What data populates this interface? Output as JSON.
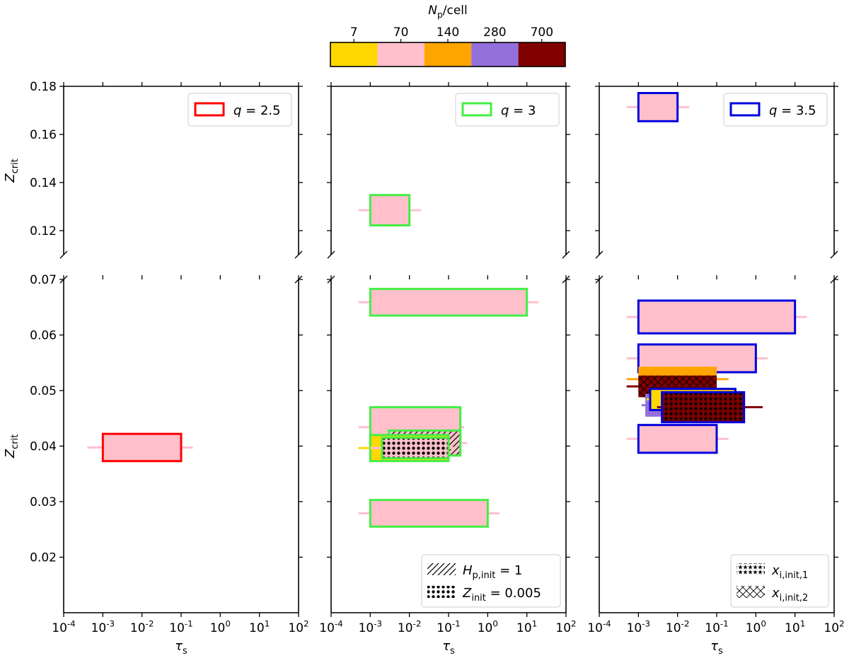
{
  "colorbar": {
    "label": "N_p/cell",
    "ticks": [
      "7",
      "70",
      "140",
      "280",
      "700"
    ],
    "colors": [
      "#FFD700",
      "#FFC0CB",
      "#FFA500",
      "#9370DB",
      "#800000"
    ]
  },
  "x_axis": {
    "label": "τ_s",
    "scale": "log",
    "ticks": [
      "10^-4",
      "10^-3",
      "10^-2",
      "10^-1",
      "10^0",
      "10^1",
      "10^2"
    ],
    "xlim": [
      0.0001,
      100
    ]
  },
  "y_axis": {
    "label": "Z_crit",
    "broken": true,
    "upper": {
      "ylim": [
        0.11,
        0.18
      ],
      "ticks": [
        "0.12",
        "0.14",
        "0.16",
        "0.18"
      ]
    },
    "lower": {
      "ylim": [
        0.01,
        0.07
      ],
      "ticks": [
        "0.02",
        "0.03",
        "0.04",
        "0.05",
        "0.06",
        "0.07"
      ]
    }
  },
  "chart_data": {
    "type": "bar",
    "panels": [
      {
        "legend": "q = 2.5",
        "edge_color": "#ff0000",
        "upper": [],
        "lower": [
          {
            "tau": [
              0.001,
              0.1
            ],
            "z": [
              0.0373,
              0.0422
            ],
            "np": "70",
            "err": [
              0.0004,
              0.2
            ]
          }
        ],
        "hatch_legend": []
      },
      {
        "legend": "q = 3",
        "edge_color": "#44ee44",
        "upper": [
          {
            "tau": [
              0.001,
              0.01
            ],
            "z": [
              0.1222,
              0.1348
            ],
            "np": "70",
            "err": [
              0.0005,
              0.02
            ]
          }
        ],
        "lower": [
          {
            "tau": [
              0.001,
              10
            ],
            "z": [
              0.0635,
              0.0683
            ],
            "np": "70",
            "err": [
              0.0005,
              20
            ]
          },
          {
            "tau": [
              0.001,
              0.2
            ],
            "z": [
              0.0398,
              0.047
            ],
            "np": "70",
            "err": [
              0.0005,
              0.25
            ]
          },
          {
            "tau": [
              0.003,
              0.2
            ],
            "z": [
              0.0383,
              0.0428
            ],
            "np": "70",
            "err": [
              0.002,
              0.3
            ],
            "hatch": "diag"
          },
          {
            "tau": [
              0.001,
              0.1
            ],
            "z": [
              0.0373,
              0.042
            ],
            "np": "7",
            "err": [
              0.0005,
              0.15
            ]
          },
          {
            "tau": [
              0.002,
              0.1
            ],
            "z": [
              0.0378,
              0.0415
            ],
            "np": "70",
            "err": [
              0.001,
              0.15
            ],
            "hatch": "dots"
          },
          {
            "tau": [
              0.001,
              1
            ],
            "z": [
              0.0255,
              0.0303
            ],
            "np": "70",
            "err": [
              0.0005,
              2
            ]
          }
        ],
        "hatch_legend": [
          {
            "pattern": "diag",
            "label": "H_p,init = 1"
          },
          {
            "pattern": "dots",
            "label": "Z_init = 0.005"
          }
        ]
      },
      {
        "legend": "q = 3.5",
        "edge_color": "#0000dd",
        "upper": [
          {
            "tau": [
              0.001,
              0.01
            ],
            "z": [
              0.1655,
              0.1772
            ],
            "np": "70",
            "err": [
              0.0005,
              0.02
            ]
          }
        ],
        "lower": [
          {
            "tau": [
              0.001,
              10
            ],
            "z": [
              0.0603,
              0.0662
            ],
            "np": "70",
            "err": [
              0.0005,
              20
            ]
          },
          {
            "tau": [
              0.001,
              1
            ],
            "z": [
              0.0533,
              0.0583
            ],
            "np": "70",
            "err": [
              0.0005,
              2
            ]
          },
          {
            "tau": [
              0.001,
              0.1
            ],
            "z": [
              0.0498,
              0.0543
            ],
            "np": "140",
            "err": [
              0.0005,
              0.2
            ],
            "noedge": true
          },
          {
            "tau": [
              0.001,
              0.1
            ],
            "z": [
              0.0488,
              0.0527
            ],
            "np": "700",
            "err": [
              0.0005,
              0.1
            ],
            "hatch": "cross",
            "noedge": true
          },
          {
            "tau": [
              0.0015,
              0.3
            ],
            "z": [
              0.0453,
              0.0494
            ],
            "np": "280",
            "err": [
              0.0012,
              0.1
            ],
            "noedge": true
          },
          {
            "tau": [
              0.002,
              0.3
            ],
            "z": [
              0.0465,
              0.0503
            ],
            "np": "7",
            "err": [
              0.0016,
              0.1
            ]
          },
          {
            "tau": [
              0.004,
              0.5
            ],
            "z": [
              0.0443,
              0.0497
            ],
            "np": "700",
            "err": [
              0.003,
              1.5
            ],
            "hatch": "stars"
          },
          {
            "tau": [
              0.001,
              0.1
            ],
            "z": [
              0.0388,
              0.0438
            ],
            "np": "70",
            "err": [
              0.0005,
              0.2
            ]
          }
        ],
        "hatch_legend": [
          {
            "pattern": "stars",
            "label": "x_i,init,1"
          },
          {
            "pattern": "cross",
            "label": "x_i,init,2"
          }
        ]
      }
    ]
  }
}
